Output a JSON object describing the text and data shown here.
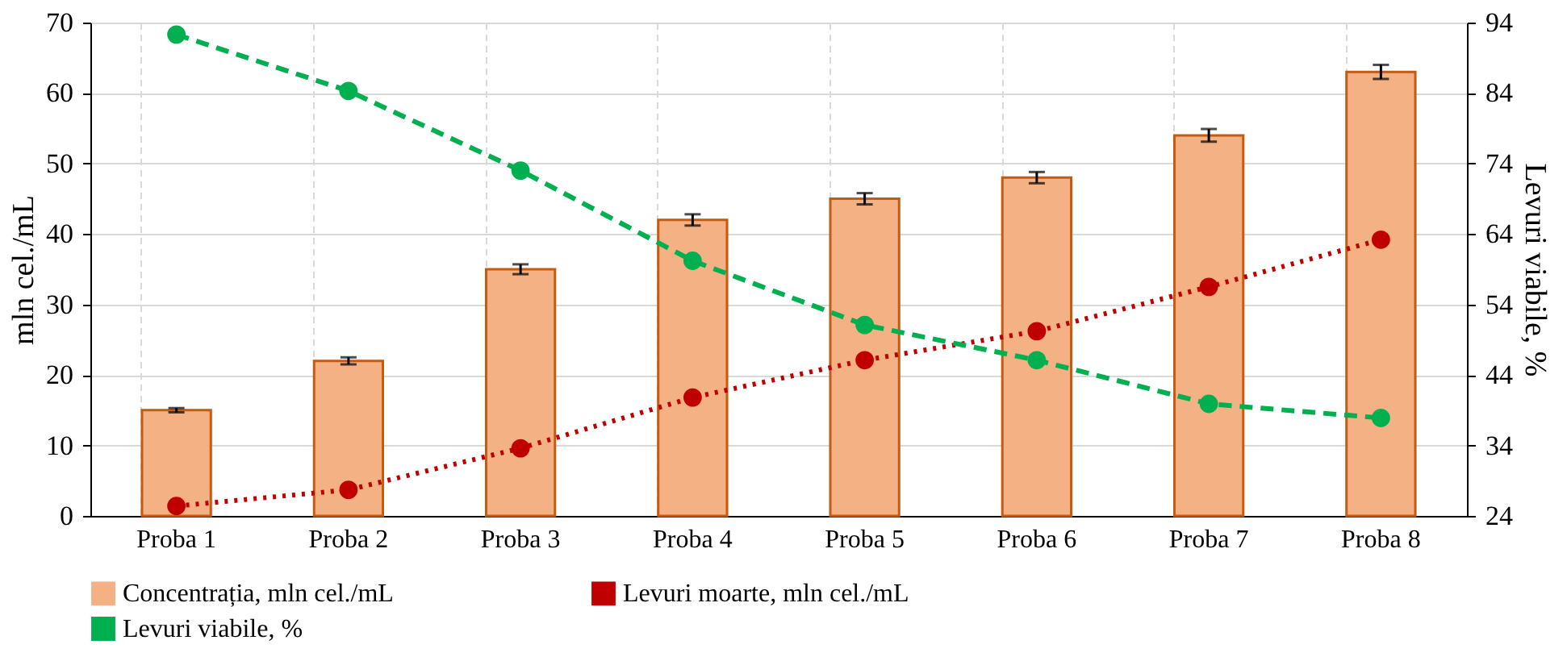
{
  "chart_data": {
    "type": "bar",
    "ylabel": "mln cel./mL",
    "y2label": "Levuri viabile, %",
    "categories": [
      "Proba 1",
      "Proba 2",
      "Proba 3",
      "Proba 4",
      "Proba 5",
      "Proba 6",
      "Proba 7",
      "Proba 8"
    ],
    "series": [
      {
        "name": "Concentrația, mln cel./mL",
        "color": "#f4b183",
        "values": [
          15,
          22,
          35,
          42,
          45,
          48,
          54,
          63
        ],
        "errors": [
          0.3,
          0.5,
          0.7,
          0.8,
          0.8,
          0.8,
          0.9,
          1
        ]
      },
      {
        "name": "Levuri moarte, mln cel./mL",
        "type": "line",
        "color": "#c00000",
        "line_style": "dotted",
        "marker": "circle",
        "values": [
          1.4,
          3.7,
          9.6,
          16.8,
          22.1,
          26.2,
          32.5,
          39.2
        ]
      },
      {
        "name": "Levuri viabile, %",
        "type": "line",
        "axis": "y2",
        "color": "#00b050",
        "line_style": "dashed",
        "marker": "circle",
        "values": [
          92.3,
          84.3,
          73,
          60.2,
          51.1,
          46.1,
          39.9,
          37.9
        ]
      }
    ],
    "ylim": [
      0,
      70
    ],
    "yticks": [
      0,
      10,
      20,
      30,
      40,
      50,
      60,
      70
    ],
    "y2lim": [
      24,
      94
    ],
    "y2ticks": [
      24,
      34,
      44,
      54,
      64,
      74,
      84,
      94
    ],
    "grid": true,
    "legend": "bottom"
  }
}
